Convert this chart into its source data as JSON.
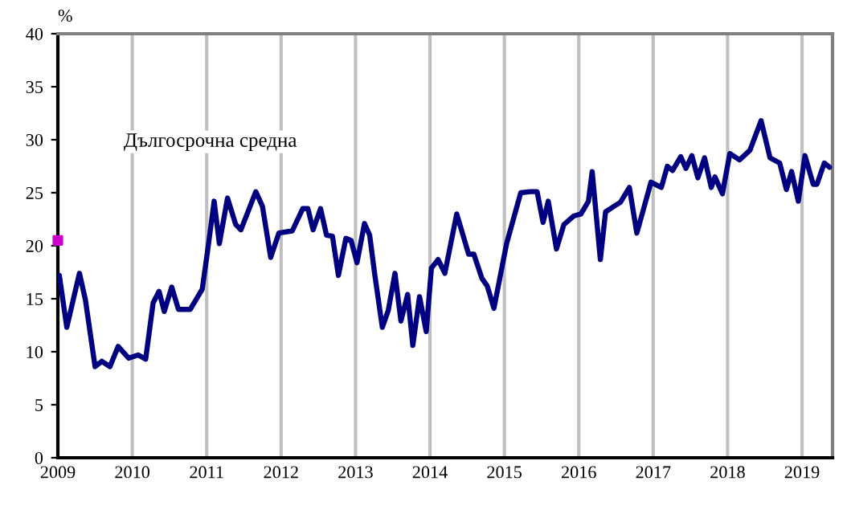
{
  "chart_data": {
    "type": "line",
    "ylabel": "%",
    "annotations": [
      "Дългосрочна средна"
    ],
    "series": [
      {
        "color": "#000080",
        "x": [
          2009.0,
          2009.02,
          2009.12,
          2009.29,
          2009.37,
          2009.5,
          2009.59,
          2009.7,
          2009.81,
          2009.95,
          2010.08,
          2010.18,
          2010.28,
          2010.36,
          2010.43,
          2010.53,
          2010.62,
          2010.78,
          2010.94,
          2011.01,
          2011.1,
          2011.17,
          2011.28,
          2011.39,
          2011.46,
          2011.66,
          2011.75,
          2011.86,
          2011.97,
          2012.15,
          2012.29,
          2012.36,
          2012.43,
          2012.53,
          2012.61,
          2012.69,
          2012.77,
          2012.87,
          2012.94,
          2013.02,
          2013.12,
          2013.19,
          2013.26,
          2013.36,
          2013.44,
          2013.53,
          2013.61,
          2013.7,
          2013.77,
          2013.86,
          2013.95,
          2014.02,
          2014.11,
          2014.2,
          2014.36,
          2014.52,
          2014.59,
          2014.7,
          2014.77,
          2014.86,
          2015.03,
          2015.22,
          2015.35,
          2015.44,
          2015.52,
          2015.59,
          2015.7,
          2015.8,
          2015.93,
          2016.03,
          2016.13,
          2016.18,
          2016.29,
          2016.36,
          2016.47,
          2016.56,
          2016.68,
          2016.78,
          2016.86,
          2016.97,
          2017.11,
          2017.19,
          2017.26,
          2017.37,
          2017.44,
          2017.52,
          2017.6,
          2017.69,
          2017.78,
          2017.83,
          2017.93,
          2018.03,
          2018.16,
          2018.3,
          2018.45,
          2018.57,
          2018.7,
          2018.79,
          2018.86,
          2018.95,
          2019.04,
          2019.15,
          2019.2,
          2019.3,
          2019.37
        ],
        "values": [
          17.0,
          17.2,
          12.3,
          17.4,
          14.9,
          8.6,
          9.1,
          8.6,
          10.5,
          9.4,
          9.7,
          9.3,
          14.6,
          15.7,
          13.8,
          16.1,
          14.0,
          14.0,
          15.9,
          19.4,
          24.2,
          20.2,
          24.5,
          22.0,
          21.5,
          25.1,
          23.7,
          18.9,
          21.2,
          21.4,
          23.5,
          23.5,
          21.5,
          23.5,
          21.0,
          20.9,
          17.2,
          20.7,
          20.5,
          18.4,
          22.1,
          21.0,
          17.2,
          12.3,
          13.9,
          17.4,
          12.9,
          15.4,
          10.6,
          15.2,
          11.9,
          17.9,
          18.7,
          17.4,
          23.0,
          19.2,
          19.2,
          16.9,
          16.2,
          14.1,
          20.2,
          25.0,
          25.1,
          25.1,
          22.2,
          24.2,
          19.7,
          22.0,
          22.8,
          23.0,
          24.2,
          27.0,
          18.7,
          23.2,
          23.7,
          24.1,
          25.5,
          21.2,
          23.2,
          26.0,
          25.5,
          27.5,
          27.1,
          28.4,
          27.3,
          28.5,
          26.4,
          28.3,
          25.5,
          26.5,
          24.9,
          28.7,
          28.1,
          29.0,
          31.8,
          28.3,
          27.8,
          25.3,
          27.0,
          24.2,
          28.5,
          25.8,
          25.8,
          27.8,
          27.4
        ]
      },
      {
        "type": "scatter",
        "color": "#cc00cc",
        "marker": "square",
        "x": [
          2009.0
        ],
        "values": [
          20.5
        ]
      }
    ],
    "xlim": [
      2009,
      2019.41
    ],
    "xticks": [
      2009,
      2010,
      2011,
      2012,
      2013,
      2014,
      2015,
      2016,
      2017,
      2018,
      2019
    ],
    "ylim": [
      0,
      40
    ],
    "yticks": [
      0,
      5,
      10,
      15,
      20,
      25,
      30,
      35,
      40
    ],
    "grid": "x",
    "line_style": "solid"
  }
}
